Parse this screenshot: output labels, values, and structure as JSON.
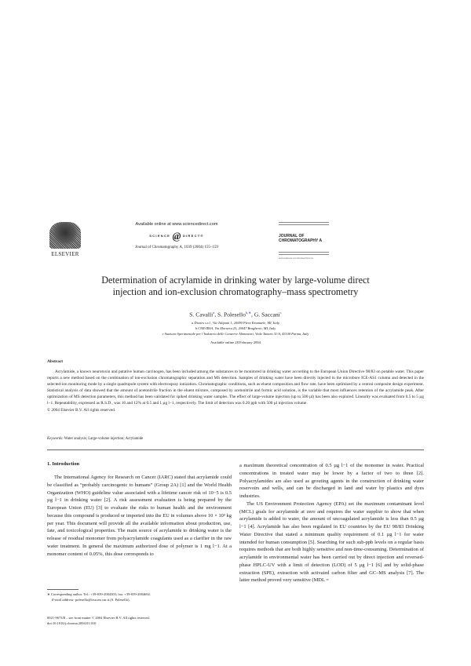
{
  "header": {
    "publisher": "ELSEVIER",
    "available_online": "Available online at www.sciencedirect.com",
    "sd_logo_left": "SCIENCE",
    "sd_logo_at": "@",
    "sd_logo_right": "DIRECT®",
    "journal_ref": "Journal of Chromatography A, 1039 (2004) 155–159",
    "journal_name_1": "JOURNAL OF",
    "journal_name_2": "CHROMATOGRAPHY A",
    "journal_url": "www.elsevier.com/locate/chroma"
  },
  "article": {
    "title_line1": "Determination of acrylamide in drinking water by large-volume direct",
    "title_line2": "injection and ion-exclusion chromatography–mass spectrometry",
    "authors": [
      {
        "name": "S. Cavalli",
        "sup": "a"
      },
      {
        "name": "S. Polesello",
        "sup": "b,∗"
      },
      {
        "name": "G. Saccani",
        "sup": "c"
      }
    ],
    "affiliations": [
      "a Dionex s.r.l., Via Tulipani 1, 20090 Pieve Emanuele, MI, Italy",
      "b CNR-IRSA, Via Mornera 25, 20047 Brugherio, MI, Italy",
      "c Stazione Sperimentale per l’Industria delle Conserve Alimentari, Viale Tanara 31/A, 43100 Parma, Italy"
    ],
    "available_online": "Available online 28 February 2004"
  },
  "abstract": {
    "heading": "Abstract",
    "text": "Acrylamide, a known neurotoxin and putative human carcinogen, has been included among the substances to be monitored in drinking water according to the European Union Directive 98/83 on potable water. This paper reports a new method based on the combination of ion-exclusion chromatographic separation and MS detection. Samples of drinking water have been directly injected in the microbore ICE-AS1 column and detected in the selected-ion monitoring mode by a single quadrupole system with electrospray ionization. Chromatographic conditions, such as eluent composition and flow rate, have been optimized by a central composite design experiment. Statistical analysis of data showed that the amount of acetonitrile fraction in the eluent mixture, composed by acetonitrile and formic acid solution, is the variable that most influences retention of the acrylamide peak. After optimization of MS detection parameters, this method has been validated for spiked drinking water samples. The effect of large-volume injection (up to 500 µl) has been also explored. Linearity was evaluated from 0.5 to 5 µg l−1. Repeatability, expressed as R.S.D., was 16 and 12% at 0.5 and 1 µg l−1, respectively. The limit of detection was 0.20 ppb with 500 µl injection volume.",
    "copyright": "© 2004 Elsevier B.V. All rights reserved.",
    "keywords_label": "Keywords:",
    "keywords": "Water analysis; Large-volume injection; Acrylamide"
  },
  "body": {
    "section_heading": "1. Introduction",
    "left_paragraph": "The International Agency for Research on Cancer (IARC) stated that acrylamide could be classified as “probably carcinogenic to humans” (Group 2A) [1] and the World Health Organization (WHO) guideline value associated with a lifetime cancer risk of 10−5 is 0.5 µg l−1 in drinking water [2]. A risk assessment evaluation is being prepared by the European Union (EU) [3] to evaluate the risks to human health and the environment because this compound is produced or imported into the EU in volumes above 10 × 10³ kg per year. This document will provide all the available information about production, use, fate, and toxicological properties. The main source of acrylamide to drinking water is the release of residual monomer from polyacrylamide coagulants used as a clarifier in the raw water treatment. In general the maximum authorized dose of polymer is 1 mg l−1. At a monomer content of 0.05%, this dose corresponds to",
    "right_paragraph_1": "a maximum theoretical concentration of 0.5 µg l−1 of the monomer in water. Practical concentrations in treated water may be lower by a factor of two to three [2]. Polyacrylamides are also used as grouting agents in the construction of drinking water reservoirs and wells, and can be discharged in land and water by plastics and dyes industries.",
    "right_paragraph_2": "The US Environment Protection Agency (EPA) set the maximum contaminant level (MCL) goals for acrylamide at zero and requires the water supplier to show that when acrylamide is added to water, the amount of uncoagulated acrylamide is less than 0.5 µg l−1 [4]. Acrylamide has also been regulated in EU countries by the EU 98/83 Drinking Water Directive that stated a minimum quality requirement of 0.1 µg l−1 for water intended for human consumption [5]. Searching for such sub-ppb levels on a regular basis requires methods that are both highly sensitive and non-time-consuming. Determination of acrylamide in environmental water has been carried out by direct injection and reversed-phase HPLC-UV with a limit of detection (LOD) of 5 µg l−1 [6] and by solid-phase extraction (SPE), extraction with activated carbon filter and GC–MS analysis [7]. The latter method proved very sensitive (MDL ="
  },
  "footnotes": {
    "corresponding": "∗ Corresponding author. Tel.: +39-039-2004303; fax: +39-039-2004692.",
    "email_label": "E-mail address:",
    "email": "polesello@irsa.rm.cnr.it (S. Polesello)."
  },
  "front_matter": {
    "issn_line": "0021-9673/$ – see front matter © 2004 Elsevier B.V. All rights reserved.",
    "doi": "doi:10.1016/j.chroma.2004.01.010"
  }
}
